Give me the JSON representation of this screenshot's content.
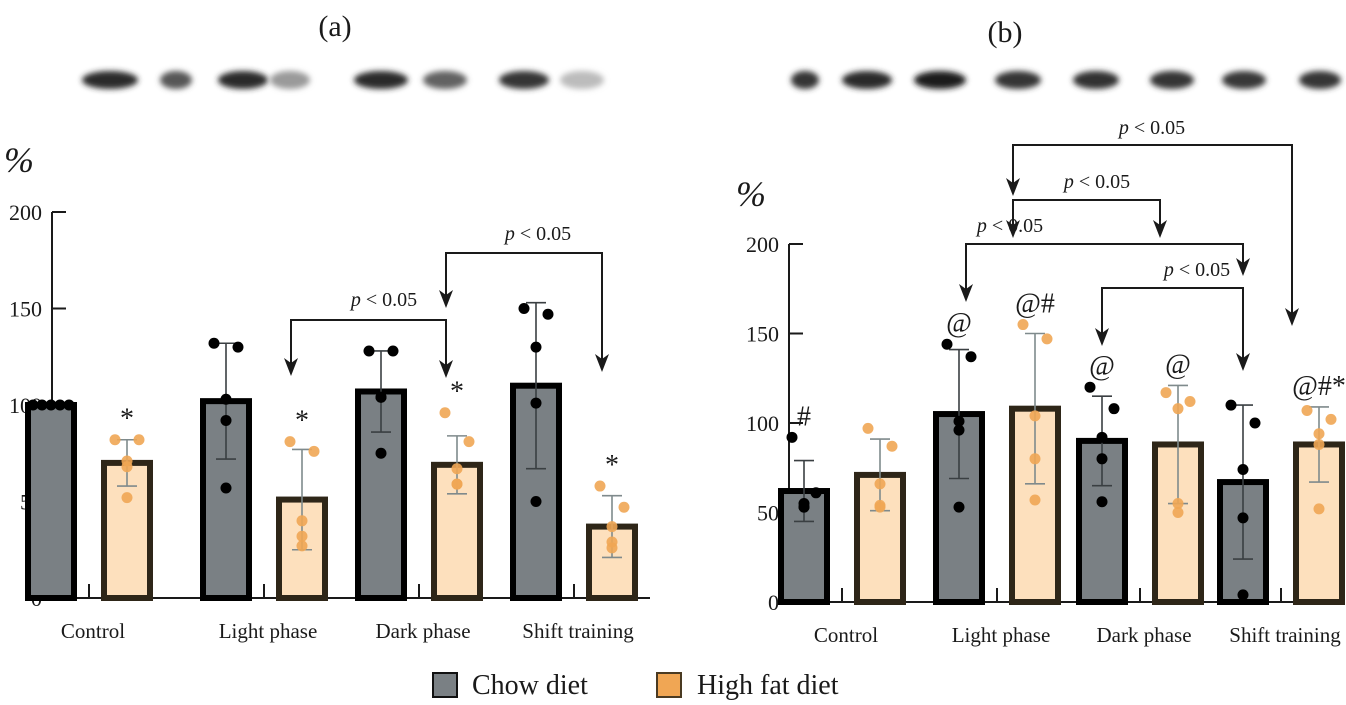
{
  "figure": {
    "legend": [
      {
        "label": "Chow diet",
        "color": "#7a8084"
      },
      {
        "label": "High fat diet",
        "color": "#f5c793"
      }
    ],
    "legend_placement": "bottom-center",
    "colors": {
      "chow_fill": "#7a8084",
      "chow_edge": "#000000",
      "hfd_fill": "#fde0bd",
      "hfd_edge": "#2e2618",
      "hfd_points": "#f0a654",
      "chow_points": "#000000",
      "errorbar_chow": "#3a3f42",
      "errorbar_hfd": "#7f8a8c"
    }
  },
  "chart_data": [
    {
      "type": "bar",
      "panel_label": "(a)",
      "ylabel": "%",
      "xlabel": "",
      "ylim": [
        0,
        200
      ],
      "yticks": [
        "0",
        "50",
        "100",
        "150",
        "200"
      ],
      "grid": false,
      "categories": [
        "Control",
        "Light phase",
        "Dark phase",
        "Shift training"
      ],
      "series": [
        {
          "name": "Chow diet",
          "values": [
            100,
            102,
            107,
            110
          ],
          "sd": [
            0,
            30,
            21,
            43
          ],
          "points": [
            [
              100,
              100,
              100,
              100,
              100
            ],
            [
              132,
              130,
              103,
              92,
              57
            ],
            [
              128,
              128,
              104,
              104,
              75
            ],
            [
              150,
              147,
              130,
              101,
              50
            ]
          ],
          "annotations": [
            "",
            "",
            "",
            ""
          ]
        },
        {
          "name": "High fat diet",
          "values": [
            70,
            51,
            69,
            37
          ],
          "sd": [
            12,
            26,
            15,
            16
          ],
          "points": [
            [
              82,
              82,
              71,
              68,
              52
            ],
            [
              81,
              76,
              40,
              32,
              27
            ],
            [
              96,
              81,
              67,
              59,
              59
            ],
            [
              58,
              47,
              37,
              29,
              26
            ]
          ],
          "annotations": [
            "*",
            "*",
            "*",
            "*"
          ]
        }
      ],
      "comparisons": [
        {
          "from": "Light phase / High fat diet",
          "to": "Dark phase / High fat diet",
          "label_prefix": "p",
          "label_suffix": " < 0.05"
        },
        {
          "from": "Dark phase / High fat diet",
          "to": "Shift training / High fat diet",
          "label_prefix": "p",
          "label_suffix": " < 0.05"
        }
      ]
    },
    {
      "type": "bar",
      "panel_label": "(b)",
      "ylabel": "%",
      "xlabel": "",
      "ylim": [
        0,
        200
      ],
      "yticks": [
        "0",
        "50",
        "100",
        "150",
        "200"
      ],
      "grid": false,
      "categories": [
        "Control",
        "Light phase",
        "Dark phase",
        "Shift training"
      ],
      "series": [
        {
          "name": "Chow diet",
          "values": [
            62,
            105,
            90,
            67
          ],
          "sd": [
            17,
            36,
            25,
            43
          ],
          "points": [
            [
              92,
              61,
              55,
              53,
              53
            ],
            [
              144,
              137,
              101,
              96,
              53
            ],
            [
              120,
              108,
              92,
              80,
              56
            ],
            [
              110,
              100,
              74,
              47,
              4
            ]
          ],
          "annotations": [
            "#",
            "@",
            "@",
            ""
          ]
        },
        {
          "name": "High fat diet",
          "values": [
            71,
            108,
            88,
            88
          ],
          "sd": [
            20,
            42,
            33,
            21
          ],
          "points": [
            [
              97,
              87,
              66,
              53,
              54
            ],
            [
              155,
              147,
              104,
              80,
              57
            ],
            [
              117,
              112,
              108,
              55,
              50
            ],
            [
              107,
              102,
              94,
              88,
              52
            ]
          ],
          "annotations": [
            "",
            "@#",
            "@",
            "@#*"
          ]
        }
      ],
      "comparisons": [
        {
          "from": "Light phase / Chow diet",
          "to": "Shift training / Chow diet",
          "label_prefix": "p",
          "label_suffix": " < 0.05"
        },
        {
          "from": "Dark phase / Chow diet",
          "to": "Shift training / Chow diet",
          "label_prefix": "p",
          "label_suffix": " < 0.05"
        },
        {
          "from": "Light phase (between)",
          "to": "Dark phase (between)",
          "label_prefix": "p",
          "label_suffix": " < 0.05"
        },
        {
          "from": "Light phase (between)",
          "to": "Shift training / High fat diet",
          "label_prefix": "p",
          "label_suffix": " < 0.05"
        }
      ]
    }
  ],
  "blots": [
    {
      "panel": "(a)",
      "band_intensities": [
        0.95,
        0.75,
        0.95,
        0.45,
        0.95,
        0.7,
        0.9,
        0.3
      ]
    },
    {
      "panel": "(b)",
      "band_intensities": [
        0.9,
        0.95,
        1.0,
        0.9,
        0.92,
        0.9,
        0.88,
        0.9
      ]
    }
  ]
}
